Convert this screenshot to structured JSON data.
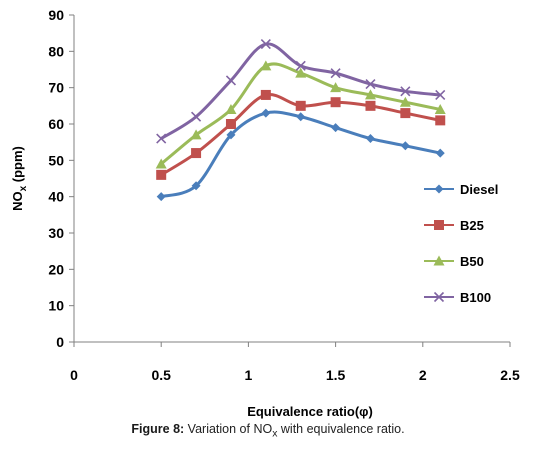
{
  "chart_data": {
    "type": "line",
    "xlabel": "Equivalence ratio(φ)",
    "ylabel": {
      "prefix": "NO",
      "sub": "x",
      "suffix": " (ppm)"
    },
    "xlim": [
      0,
      2.5
    ],
    "ylim": [
      0,
      90
    ],
    "xticks": [
      0,
      0.5,
      1,
      1.5,
      2,
      2.5
    ],
    "xtick_labels": [
      "0",
      "0.5",
      "1",
      "1.5",
      "2",
      "2.5"
    ],
    "yticks": [
      0,
      10,
      20,
      30,
      40,
      50,
      60,
      70,
      80,
      90
    ],
    "grid": false,
    "legend_position": "right",
    "x": [
      0.5,
      0.7,
      0.9,
      1.1,
      1.3,
      1.5,
      1.7,
      1.9,
      2.1
    ],
    "series": [
      {
        "name": "Diesel",
        "marker": "diamond",
        "color": "#4a7ebb",
        "values": [
          40,
          43,
          57,
          63,
          62,
          59,
          56,
          54,
          52
        ]
      },
      {
        "name": "B25",
        "marker": "square",
        "color": "#c0504d",
        "values": [
          46,
          52,
          60,
          68,
          65,
          66,
          65,
          63,
          61
        ]
      },
      {
        "name": "B50",
        "marker": "triangle",
        "color": "#9bbb59",
        "values": [
          49,
          57,
          64,
          76,
          74,
          70,
          68,
          66,
          64
        ]
      },
      {
        "name": "B100",
        "marker": "x",
        "color": "#8064a2",
        "values": [
          56,
          62,
          72,
          82,
          76,
          74,
          71,
          69,
          68
        ]
      }
    ]
  },
  "caption": {
    "label": "Figure 8:",
    "text_pre": " Variation of  NO",
    "text_sub": "x",
    "text_post": " with equivalence ratio."
  }
}
